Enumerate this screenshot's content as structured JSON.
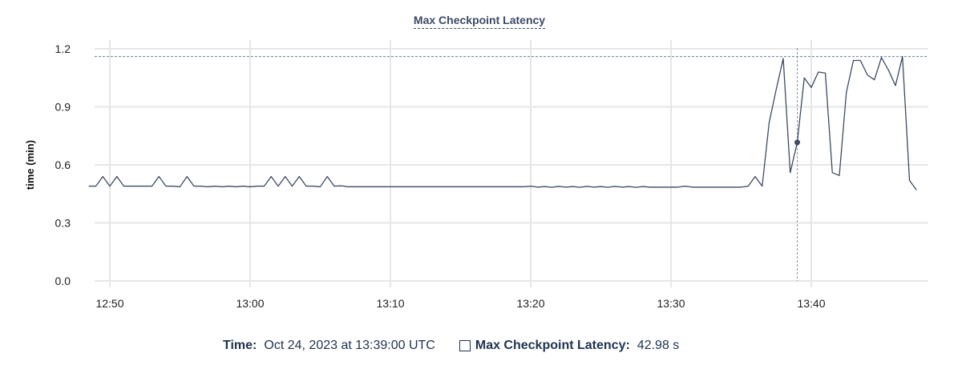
{
  "chart_data": {
    "type": "line",
    "title": "Max Checkpoint Latency",
    "xlabel": "",
    "ylabel": "time (min)",
    "ylim": [
      0,
      1.2
    ],
    "yticks": [
      "0.0",
      "0.3",
      "0.6",
      "0.9",
      "1.2"
    ],
    "xticks": [
      "12:50",
      "13:00",
      "13:10",
      "13:20",
      "13:30",
      "13:40"
    ],
    "grid": true,
    "color": "#3d4b63",
    "max_line": 1.16,
    "hover": {
      "index": 101,
      "time_label": "Time:",
      "time_value": "Oct 24, 2023 at 13:39:00 UTC",
      "series_label": "Max Checkpoint Latency:",
      "series_value": "42.98 s"
    },
    "x": [
      "12:48:30",
      "12:49:00",
      "12:49:30",
      "12:50:00",
      "12:50:30",
      "12:51:00",
      "12:51:30",
      "12:52:00",
      "12:52:30",
      "12:53:00",
      "12:53:30",
      "12:54:00",
      "12:54:30",
      "12:55:00",
      "12:55:30",
      "12:56:00",
      "12:56:30",
      "12:57:00",
      "12:57:30",
      "12:58:00",
      "12:58:30",
      "12:59:00",
      "12:59:30",
      "13:00:00",
      "13:00:30",
      "13:01:00",
      "13:01:30",
      "13:02:00",
      "13:02:30",
      "13:03:00",
      "13:03:30",
      "13:04:00",
      "13:04:30",
      "13:05:00",
      "13:05:30",
      "13:06:00",
      "13:06:30",
      "13:07:00",
      "13:07:30",
      "13:08:00",
      "13:08:30",
      "13:09:00",
      "13:09:30",
      "13:10:00",
      "13:10:30",
      "13:11:00",
      "13:11:30",
      "13:12:00",
      "13:12:30",
      "13:13:00",
      "13:13:30",
      "13:14:00",
      "13:14:30",
      "13:15:00",
      "13:15:30",
      "13:16:00",
      "13:16:30",
      "13:17:00",
      "13:17:30",
      "13:18:00",
      "13:18:30",
      "13:19:00",
      "13:19:30",
      "13:20:00",
      "13:20:30",
      "13:21:00",
      "13:21:30",
      "13:22:00",
      "13:22:30",
      "13:23:00",
      "13:23:30",
      "13:24:00",
      "13:24:30",
      "13:25:00",
      "13:25:30",
      "13:26:00",
      "13:26:30",
      "13:27:00",
      "13:27:30",
      "13:28:00",
      "13:28:30",
      "13:29:00",
      "13:29:30",
      "13:30:00",
      "13:30:30",
      "13:31:00",
      "13:31:30",
      "13:32:00",
      "13:32:30",
      "13:33:00",
      "13:33:30",
      "13:34:00",
      "13:34:30",
      "13:35:00",
      "13:35:30",
      "13:36:00",
      "13:36:30",
      "13:37:00",
      "13:37:30",
      "13:38:00",
      "13:38:30",
      "13:39:00",
      "13:39:30",
      "13:40:00",
      "13:40:30",
      "13:41:00",
      "13:41:30",
      "13:42:00",
      "13:42:30",
      "13:43:00",
      "13:43:30",
      "13:44:00",
      "13:44:30",
      "13:45:00",
      "13:45:30",
      "13:46:00",
      "13:46:30",
      "13:47:00",
      "13:47:30"
    ],
    "values": [
      0.49,
      0.49,
      0.54,
      0.49,
      0.54,
      0.49,
      0.49,
      0.49,
      0.49,
      0.49,
      0.54,
      0.49,
      0.49,
      0.487,
      0.54,
      0.49,
      0.49,
      0.487,
      0.49,
      0.487,
      0.49,
      0.487,
      0.49,
      0.487,
      0.49,
      0.49,
      0.54,
      0.49,
      0.54,
      0.49,
      0.54,
      0.49,
      0.49,
      0.487,
      0.54,
      0.49,
      0.492,
      0.487,
      0.487,
      0.487,
      0.487,
      0.487,
      0.487,
      0.487,
      0.487,
      0.487,
      0.487,
      0.487,
      0.487,
      0.487,
      0.487,
      0.487,
      0.487,
      0.487,
      0.487,
      0.487,
      0.487,
      0.487,
      0.487,
      0.487,
      0.487,
      0.487,
      0.487,
      0.49,
      0.485,
      0.488,
      0.484,
      0.489,
      0.485,
      0.488,
      0.484,
      0.489,
      0.485,
      0.488,
      0.484,
      0.489,
      0.485,
      0.488,
      0.484,
      0.488,
      0.485,
      0.485,
      0.485,
      0.485,
      0.485,
      0.49,
      0.485,
      0.485,
      0.485,
      0.485,
      0.485,
      0.485,
      0.485,
      0.485,
      0.49,
      0.54,
      0.49,
      0.82,
      0.99,
      1.15,
      0.56,
      0.7163,
      1.05,
      1.0,
      1.08,
      1.075,
      0.56,
      0.545,
      0.975,
      1.14,
      1.14,
      1.065,
      1.04,
      1.155,
      1.09,
      1.01,
      1.16,
      0.52,
      0.47
    ]
  }
}
